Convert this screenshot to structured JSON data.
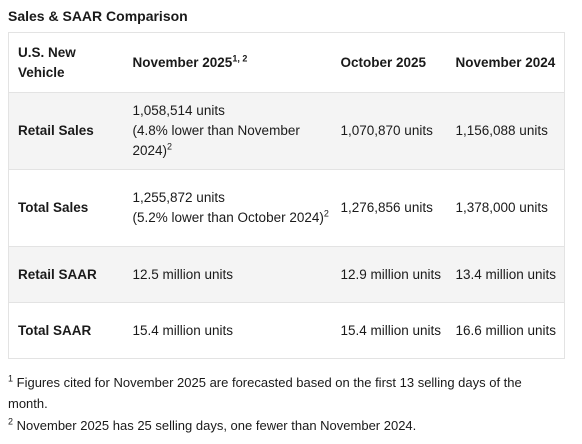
{
  "title": "Sales & SAAR Comparison",
  "table": {
    "headers": {
      "vehicle": "U.S. New Vehicle",
      "nov2025": "November 2025",
      "nov2025_sup": "1, 2",
      "oct2025": "October 2025",
      "nov2024": "November 2024"
    },
    "rows": [
      {
        "label": "Retail Sales",
        "nov2025_value": "1,058,514 units",
        "nov2025_note": "(4.8% lower than November 2024)",
        "nov2025_sup": "2",
        "oct2025": "1,070,870 units",
        "nov2024": "1,156,088 units"
      },
      {
        "label": "Total Sales",
        "nov2025_value": "1,255,872 units",
        "nov2025_note": "(5.2% lower than October 2024)",
        "nov2025_sup": "2",
        "oct2025": "1,276,856 units",
        "nov2024": "1,378,000 units"
      },
      {
        "label": "Retail SAAR",
        "nov2025_value": "12.5 million units",
        "oct2025": "12.9 million units",
        "nov2024": "13.4 million units"
      },
      {
        "label": "Total SAAR",
        "nov2025_value": "15.4 million units",
        "oct2025": "15.4 million units",
        "nov2024": "16.6 million units"
      }
    ]
  },
  "footnotes": [
    {
      "marker": "1",
      "text": "Figures cited for November 2025 are forecasted based on the first 13 selling days of the month."
    },
    {
      "marker": "2",
      "text": "November 2025 has 25 selling days, one fewer than November 2024."
    }
  ]
}
